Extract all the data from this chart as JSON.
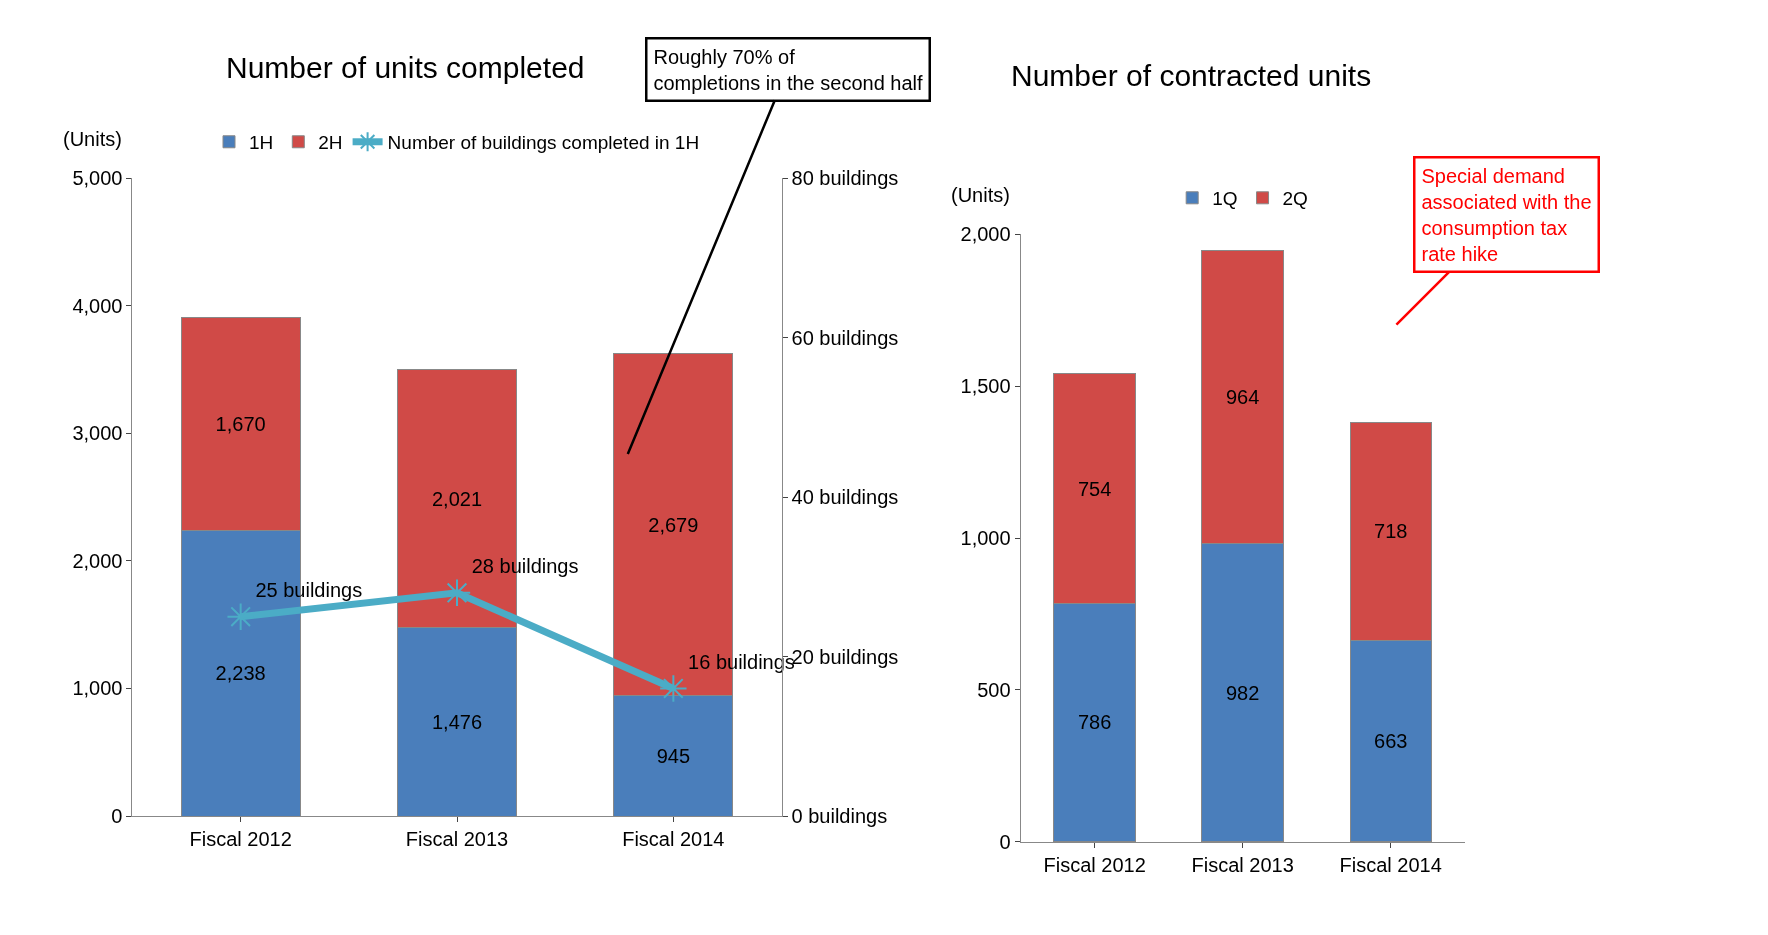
{
  "chart_data": [
    {
      "type": "bar",
      "title": "Number of units completed",
      "ylabel": "(Units)",
      "stacked": true,
      "categories": [
        "Fiscal 2012",
        "Fiscal 2013",
        "Fiscal 2014"
      ],
      "series": [
        {
          "name": "1H",
          "color": "#4a7ebb",
          "values": [
            2238,
            1476,
            945
          ],
          "value_labels": [
            "2,238",
            "1,476",
            "945"
          ]
        },
        {
          "name": "2H",
          "color": "#d04a47",
          "values": [
            1670,
            2021,
            2679
          ],
          "value_labels": [
            "1,670",
            "2,021",
            "2,679"
          ]
        },
        {
          "name": "Number of buildings completed in 1H",
          "type": "line",
          "axis": "y2",
          "color": "#4bacc6",
          "marker": "cross",
          "values": [
            25,
            28,
            16
          ],
          "value_labels": [
            "25 buildings",
            "28 buildings",
            "16 buildings"
          ]
        }
      ],
      "ylim": [
        0,
        5000
      ],
      "yticks": [
        0,
        {
          "value": 1000,
          "label": "1,000"
        },
        {
          "value": 2000,
          "label": "2,000"
        },
        {
          "value": 3000,
          "label": "3,000"
        },
        {
          "value": 4000,
          "label": "4,000"
        },
        {
          "value": 5000,
          "label": "5,000"
        }
      ],
      "y2lim": [
        0,
        80
      ],
      "y2ticks": [
        {
          "value": 0,
          "label": "0 buildings"
        },
        {
          "value": 20,
          "label": "20 buildings"
        },
        {
          "value": 40,
          "label": "40 buildings"
        },
        {
          "value": 60,
          "label": "60 buildings"
        },
        {
          "value": 80,
          "label": "80 buildings"
        }
      ],
      "annotations": [
        "Roughly 70% of completions in the second half"
      ],
      "legend": "top",
      "grid": false
    },
    {
      "type": "bar",
      "title": "Number of contracted units",
      "ylabel": "(Units)",
      "stacked": true,
      "categories": [
        "Fiscal 2012",
        "Fiscal 2013",
        "Fiscal 2014"
      ],
      "series": [
        {
          "name": "1Q",
          "color": "#4a7ebb",
          "values": [
            786,
            982,
            663
          ]
        },
        {
          "name": "2Q",
          "color": "#d04a47",
          "values": [
            754,
            964,
            718
          ]
        }
      ],
      "data_labels": true,
      "ylim": [
        0,
        2000
      ],
      "yticks": [
        0,
        500,
        {
          "value": 1000,
          "label": "1,000"
        },
        {
          "value": 1500,
          "label": "1,500"
        },
        {
          "value": 2000,
          "label": "2,000"
        }
      ],
      "annotations": [
        "Special demand associated with the consumption tax rate hike"
      ],
      "legend": "top",
      "grid": false
    }
  ]
}
